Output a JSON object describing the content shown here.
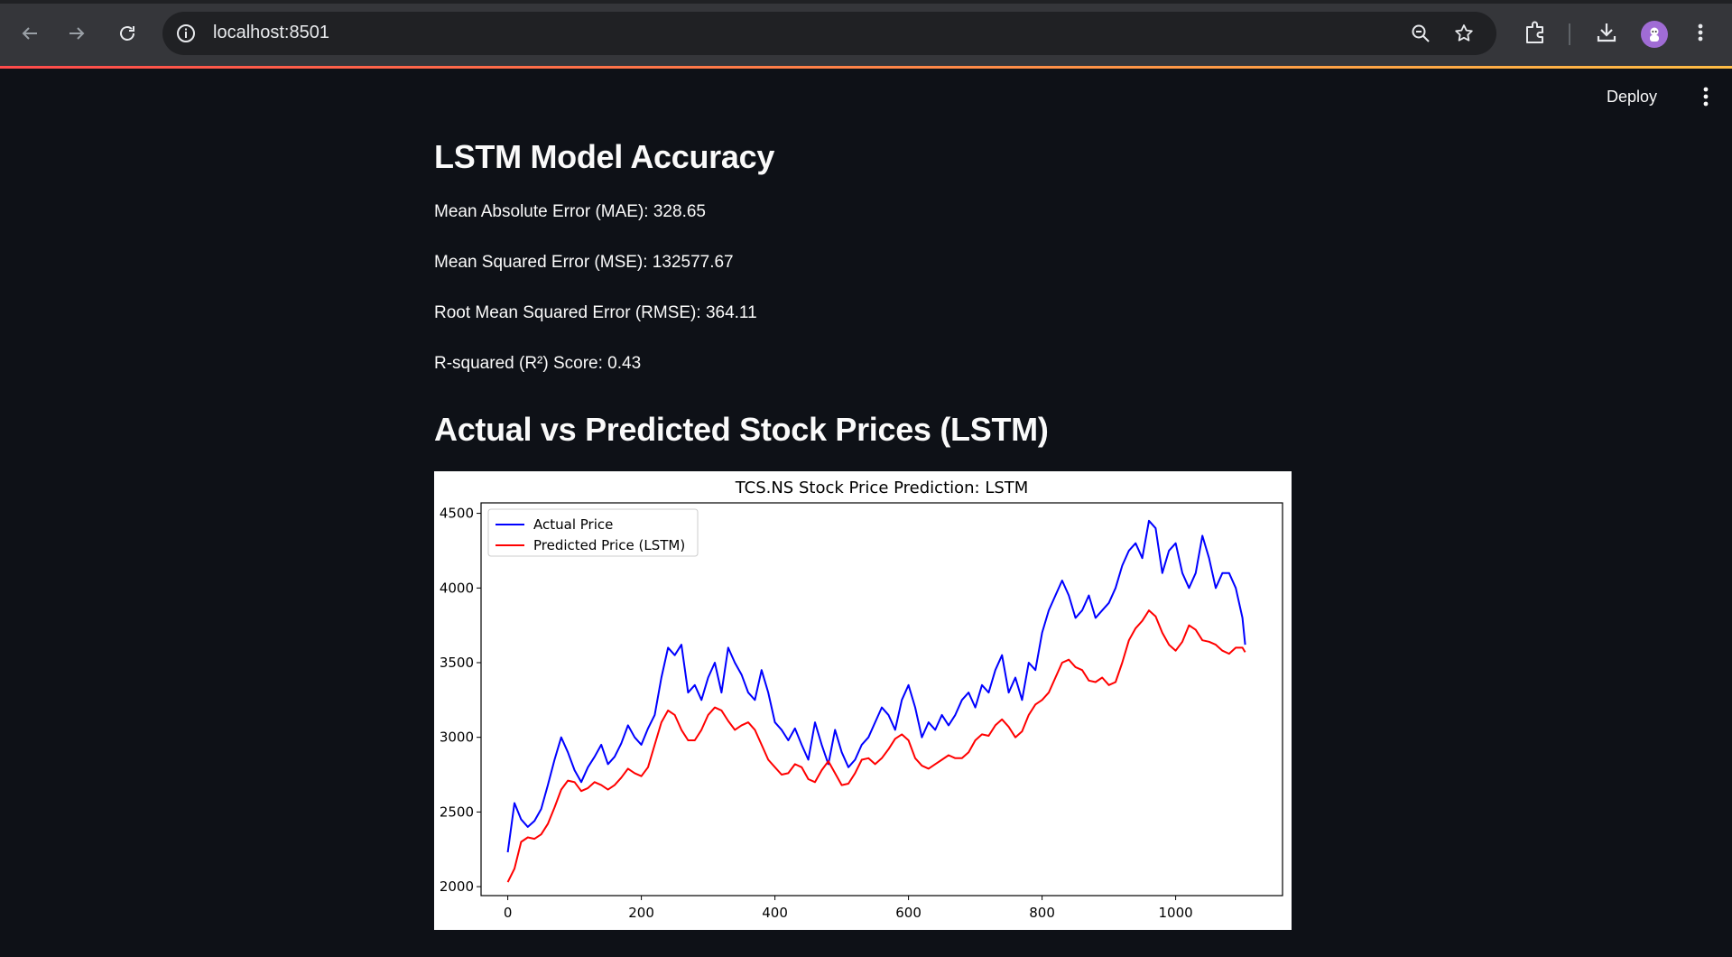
{
  "browser": {
    "url": "localhost:8501",
    "icons": [
      "back-arrow-icon",
      "forward-arrow-icon",
      "reload-icon",
      "site-info-icon",
      "zoom-icon",
      "bookmark-star-icon",
      "extensions-icon",
      "download-icon",
      "profile-avatar",
      "more-vert-icon"
    ]
  },
  "header": {
    "deploy_label": "Deploy",
    "menu_icon": "more-vert-icon"
  },
  "main": {
    "accuracy_title": "LSTM Model Accuracy",
    "mae": "Mean Absolute Error (MAE): 328.65",
    "mse": "Mean Squared Error (MSE): 132577.67",
    "rmse": "Root Mean Squared Error (RMSE): 364.11",
    "r2": "R-squared (R²) Score: 0.43",
    "chart_title": "Actual vs Predicted Stock Prices (LSTM)"
  },
  "colors": {
    "background": "#0e1117",
    "actual": "#0000ff",
    "predicted": "#ff0000"
  },
  "chart_data": {
    "type": "line",
    "title": "TCS.NS Stock Price Prediction: LSTM",
    "xlabel": "",
    "ylabel": "",
    "xlim": [
      -40,
      1160
    ],
    "ylim": [
      1940,
      4570
    ],
    "xticks": [
      0,
      200,
      400,
      600,
      800,
      1000
    ],
    "yticks": [
      2000,
      2500,
      3000,
      3500,
      4000,
      4500
    ],
    "legend_position": "top-left",
    "grid": false,
    "series": [
      {
        "name": "Actual Price",
        "color": "#0000ff",
        "x": [
          0,
          10,
          20,
          30,
          40,
          50,
          60,
          70,
          80,
          90,
          100,
          110,
          120,
          130,
          140,
          150,
          160,
          170,
          180,
          190,
          200,
          210,
          220,
          230,
          240,
          250,
          260,
          270,
          280,
          290,
          300,
          310,
          320,
          330,
          340,
          350,
          360,
          370,
          380,
          390,
          400,
          410,
          420,
          430,
          440,
          450,
          460,
          470,
          480,
          490,
          500,
          510,
          520,
          530,
          540,
          550,
          560,
          570,
          580,
          590,
          600,
          610,
          620,
          630,
          640,
          650,
          660,
          670,
          680,
          690,
          700,
          710,
          720,
          730,
          740,
          750,
          760,
          770,
          780,
          790,
          800,
          810,
          820,
          830,
          840,
          850,
          860,
          870,
          880,
          890,
          900,
          910,
          920,
          930,
          940,
          950,
          960,
          970,
          980,
          990,
          1000,
          1010,
          1020,
          1030,
          1040,
          1050,
          1060,
          1070,
          1080,
          1090,
          1100,
          1104
        ],
        "values": [
          2230,
          2560,
          2450,
          2400,
          2440,
          2520,
          2680,
          2850,
          3000,
          2900,
          2780,
          2700,
          2800,
          2870,
          2950,
          2820,
          2870,
          2960,
          3080,
          3000,
          2950,
          3060,
          3150,
          3400,
          3600,
          3550,
          3620,
          3300,
          3350,
          3250,
          3400,
          3500,
          3300,
          3600,
          3500,
          3420,
          3300,
          3250,
          3450,
          3300,
          3100,
          3050,
          2980,
          3060,
          2950,
          2850,
          3100,
          2950,
          2820,
          3050,
          2900,
          2800,
          2850,
          2950,
          3000,
          3100,
          3200,
          3150,
          3050,
          3250,
          3350,
          3200,
          3000,
          3100,
          3050,
          3150,
          3080,
          3150,
          3250,
          3300,
          3200,
          3350,
          3300,
          3450,
          3550,
          3300,
          3400,
          3250,
          3500,
          3450,
          3700,
          3850,
          3950,
          4050,
          3950,
          3800,
          3850,
          3950,
          3800,
          3850,
          3900,
          4000,
          4150,
          4250,
          4300,
          4200,
          4450,
          4400,
          4100,
          4250,
          4300,
          4100,
          4000,
          4100,
          4350,
          4200,
          4000,
          4100,
          4100,
          4000,
          3800,
          3620
        ]
      },
      {
        "name": "Predicted Price (LSTM)",
        "color": "#ff0000",
        "x": [
          0,
          10,
          20,
          30,
          40,
          50,
          60,
          70,
          80,
          90,
          100,
          110,
          120,
          130,
          140,
          150,
          160,
          170,
          180,
          190,
          200,
          210,
          220,
          230,
          240,
          250,
          260,
          270,
          280,
          290,
          300,
          310,
          320,
          330,
          340,
          350,
          360,
          370,
          380,
          390,
          400,
          410,
          420,
          430,
          440,
          450,
          460,
          470,
          480,
          490,
          500,
          510,
          520,
          530,
          540,
          550,
          560,
          570,
          580,
          590,
          600,
          610,
          620,
          630,
          640,
          650,
          660,
          670,
          680,
          690,
          700,
          710,
          720,
          730,
          740,
          750,
          760,
          770,
          780,
          790,
          800,
          810,
          820,
          830,
          840,
          850,
          860,
          870,
          880,
          890,
          900,
          910,
          920,
          930,
          940,
          950,
          960,
          970,
          980,
          990,
          1000,
          1010,
          1020,
          1030,
          1040,
          1050,
          1060,
          1070,
          1080,
          1090,
          1100,
          1104
        ],
        "values": [
          2030,
          2120,
          2300,
          2330,
          2320,
          2350,
          2420,
          2530,
          2650,
          2710,
          2700,
          2640,
          2660,
          2700,
          2680,
          2650,
          2680,
          2730,
          2790,
          2760,
          2740,
          2800,
          2950,
          3100,
          3180,
          3150,
          3050,
          2980,
          2980,
          3050,
          3150,
          3200,
          3180,
          3110,
          3050,
          3080,
          3100,
          3050,
          2950,
          2850,
          2800,
          2750,
          2760,
          2820,
          2800,
          2720,
          2700,
          2780,
          2840,
          2760,
          2680,
          2690,
          2760,
          2850,
          2860,
          2820,
          2860,
          2920,
          2990,
          3020,
          2980,
          2860,
          2810,
          2790,
          2820,
          2850,
          2880,
          2860,
          2860,
          2900,
          2980,
          3020,
          3010,
          3080,
          3120,
          3070,
          3000,
          3040,
          3150,
          3220,
          3250,
          3300,
          3400,
          3500,
          3520,
          3470,
          3450,
          3380,
          3370,
          3400,
          3350,
          3370,
          3500,
          3650,
          3730,
          3780,
          3850,
          3810,
          3700,
          3620,
          3580,
          3640,
          3750,
          3720,
          3650,
          3640,
          3620,
          3580,
          3560,
          3600,
          3600,
          3570
        ]
      }
    ]
  }
}
